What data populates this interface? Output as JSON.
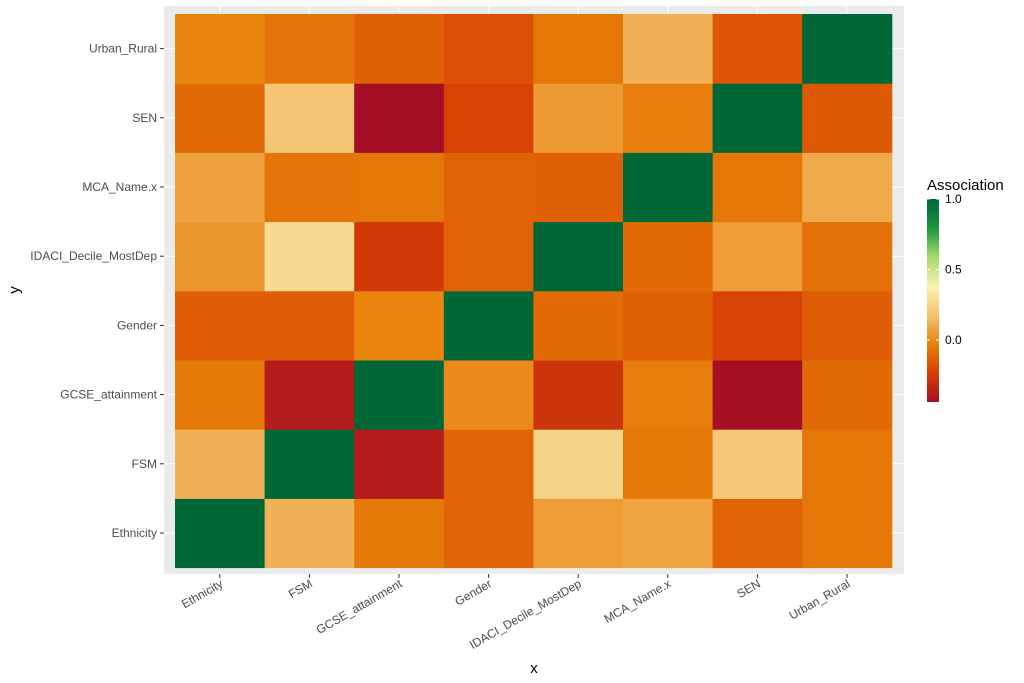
{
  "chart_data": {
    "type": "heatmap",
    "title": "",
    "xlabel": "x",
    "ylabel": "y",
    "x_categories": [
      "Ethnicity",
      "FSM",
      "GCSE_attainment",
      "Gender",
      "IDACI_Decile_MostDep",
      "MCA_Name.x",
      "SEN",
      "Urban_Rural"
    ],
    "y_categories": [
      "Ethnicity",
      "FSM",
      "GCSE_attainment",
      "Gender",
      "IDACI_Decile_MostDep",
      "MCA_Name.x",
      "SEN",
      "Urban_Rural"
    ],
    "values": [
      [
        1.0,
        0.12,
        -0.05,
        -0.12,
        0.06,
        0.08,
        -0.12,
        -0.06
      ],
      [
        0.12,
        1.0,
        -0.38,
        -0.12,
        0.25,
        -0.05,
        0.2,
        -0.06
      ],
      [
        -0.05,
        -0.38,
        1.0,
        0.0,
        -0.28,
        -0.04,
        -0.44,
        -0.1
      ],
      [
        -0.14,
        -0.14,
        -0.02,
        1.0,
        -0.1,
        -0.13,
        -0.22,
        -0.14
      ],
      [
        0.04,
        0.28,
        -0.26,
        -0.12,
        1.0,
        -0.1,
        0.06,
        -0.08
      ],
      [
        0.07,
        -0.07,
        -0.06,
        -0.12,
        -0.13,
        1.0,
        -0.06,
        0.1
      ],
      [
        -0.1,
        0.18,
        -0.44,
        -0.22,
        0.05,
        -0.04,
        1.0,
        -0.15
      ],
      [
        -0.02,
        -0.07,
        -0.13,
        -0.18,
        -0.06,
        0.12,
        -0.16,
        1.0
      ]
    ],
    "legend": {
      "title": "Association",
      "position": "right",
      "ticks": [
        "1.0",
        "0.5",
        "0.0"
      ],
      "tick_values": [
        1.0,
        0.5,
        0.0
      ],
      "min": -0.44,
      "max": 1.0
    },
    "palette": [
      "#a50f26",
      "#d73e02",
      "#e8810a",
      "#f5c373",
      "#f9f3b0",
      "#a6d96a",
      "#1a9641",
      "#006837"
    ],
    "panel_background": "#ebebeb",
    "grid": true
  }
}
